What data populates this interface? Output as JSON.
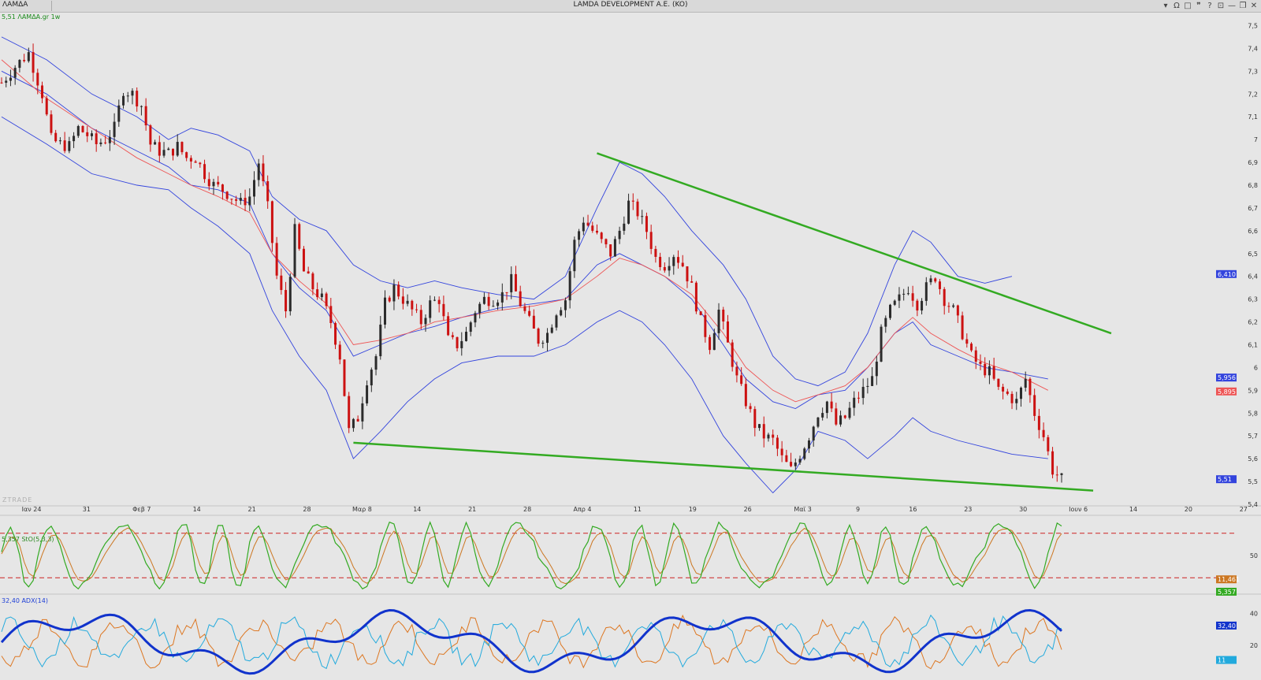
{
  "window": {
    "symbol": "ΛΑΜΔΑ",
    "title": "LAMDA DEVELOPMENT A.E. (KO)",
    "icons": [
      "dropdown-icon",
      "omega-icon",
      "square-icon",
      "quote-icon",
      "help-icon",
      "lock-icon",
      "minimize-icon",
      "restore-icon",
      "close-icon"
    ],
    "icon_glyphs": [
      "▾",
      "Ω",
      "□",
      "❞",
      "?",
      "⊡",
      "—",
      "❐",
      "✕"
    ]
  },
  "main_label": "5,51 ΛΑΜΔΑ.gr 1w",
  "watermark": "ZTRADE",
  "stoch_label": "5,357 StO(5,3,3)",
  "adx_label": "32,40 ADX(14)",
  "colors": {
    "up": "#2b2b2b",
    "down": "#cc1111",
    "bollinger": "#3344dd",
    "ma": "#ee5555",
    "trend": "#33aa22",
    "stoch_k": "#33aa22",
    "stoch_d": "#cc7722",
    "stoch_level": "#cc2222",
    "adx": "#1133cc",
    "di_plus": "#22aadd",
    "di_minus": "#dd7722"
  },
  "chart_data": [
    {
      "type": "line",
      "title": "LAMDA DEVELOPMENT A.E. (KO)",
      "y_ticks": [
        "7,5",
        "7,4",
        "7,3",
        "7,2",
        "7,1",
        "7",
        "6,9",
        "6,8",
        "6,7",
        "6,6",
        "6,5",
        "6,4",
        "6,3",
        "6,2",
        "6,1",
        "6",
        "5,9",
        "5,8",
        "5,7",
        "5,6",
        "5,5",
        "5,4"
      ],
      "x_ticks": [
        "Ιαν 24",
        "31",
        "Φεβ 7",
        "14",
        "21",
        "28",
        "Μαρ 8",
        "14",
        "21",
        "28",
        "Απρ 4",
        "11",
        "19",
        "26",
        "Μαϊ 3",
        "9",
        "16",
        "23",
        "30",
        "Ιουν 6",
        "14",
        "20",
        "27"
      ],
      "ylim": [
        5.4,
        7.55
      ],
      "last_close": 5.51,
      "badges": [
        {
          "label": "6,410",
          "value": 6.41,
          "color": "#3344dd"
        },
        {
          "label": "5,956",
          "value": 5.956,
          "color": "#3344dd"
        },
        {
          "label": "5,895",
          "value": 5.895,
          "color": "#ee5555"
        },
        {
          "label": "5,51",
          "value": 5.51,
          "color": "#3344dd"
        }
      ],
      "price_path": [
        [
          0,
          7.25
        ],
        [
          3,
          7.32
        ],
        [
          6,
          7.38
        ],
        [
          9,
          7.2
        ],
        [
          11,
          7.0
        ],
        [
          13,
          6.98
        ],
        [
          15,
          6.97
        ],
        [
          17,
          7.05
        ],
        [
          19,
          7.02
        ],
        [
          21,
          6.98
        ],
        [
          23,
          7.0
        ],
        [
          25,
          7.05
        ],
        [
          27,
          7.22
        ],
        [
          29,
          7.2
        ],
        [
          31,
          7.15
        ],
        [
          33,
          6.98
        ],
        [
          35,
          6.95
        ],
        [
          37,
          6.94
        ],
        [
          39,
          6.97
        ],
        [
          41,
          6.92
        ],
        [
          43,
          6.92
        ],
        [
          45,
          6.85
        ],
        [
          47,
          6.8
        ],
        [
          49,
          6.78
        ],
        [
          51,
          6.75
        ],
        [
          53,
          6.72
        ],
        [
          55,
          6.75
        ],
        [
          57,
          6.9
        ],
        [
          59,
          6.7
        ],
        [
          61,
          6.4
        ],
        [
          63,
          6.25
        ],
        [
          65,
          6.6
        ],
        [
          67,
          6.42
        ],
        [
          69,
          6.35
        ],
        [
          71,
          6.3
        ],
        [
          73,
          6.2
        ],
        [
          75,
          6.05
        ],
        [
          77,
          5.72
        ],
        [
          79,
          5.78
        ],
        [
          81,
          5.95
        ],
        [
          83,
          6.05
        ],
        [
          85,
          6.28
        ],
        [
          87,
          6.35
        ],
        [
          89,
          6.3
        ],
        [
          91,
          6.25
        ],
        [
          93,
          6.2
        ],
        [
          95,
          6.28
        ],
        [
          97,
          6.3
        ],
        [
          99,
          6.12
        ],
        [
          101,
          6.1
        ],
        [
          103,
          6.15
        ],
        [
          105,
          6.25
        ],
        [
          107,
          6.3
        ],
        [
          109,
          6.3
        ],
        [
          111,
          6.32
        ],
        [
          113,
          6.38
        ],
        [
          115,
          6.28
        ],
        [
          117,
          6.2
        ],
        [
          119,
          6.12
        ],
        [
          121,
          6.15
        ],
        [
          123,
          6.25
        ],
        [
          125,
          6.3
        ],
        [
          127,
          6.55
        ],
        [
          129,
          6.65
        ],
        [
          131,
          6.6
        ],
        [
          133,
          6.55
        ],
        [
          135,
          6.5
        ],
        [
          137,
          6.6
        ],
        [
          139,
          6.72
        ],
        [
          141,
          6.68
        ],
        [
          143,
          6.6
        ],
        [
          145,
          6.48
        ],
        [
          147,
          6.45
        ],
        [
          149,
          6.5
        ],
        [
          151,
          6.45
        ],
        [
          153,
          6.35
        ],
        [
          155,
          6.2
        ],
        [
          157,
          6.1
        ],
        [
          159,
          6.25
        ],
        [
          161,
          6.1
        ],
        [
          163,
          5.95
        ],
        [
          165,
          5.85
        ],
        [
          167,
          5.75
        ],
        [
          169,
          5.7
        ],
        [
          171,
          5.68
        ],
        [
          173,
          5.6
        ],
        [
          175,
          5.55
        ],
        [
          177,
          5.62
        ],
        [
          179,
          5.7
        ],
        [
          181,
          5.8
        ],
        [
          183,
          5.85
        ],
        [
          185,
          5.75
        ],
        [
          187,
          5.78
        ],
        [
          189,
          5.85
        ],
        [
          191,
          5.9
        ],
        [
          193,
          5.95
        ],
        [
          195,
          6.15
        ],
        [
          197,
          6.25
        ],
        [
          199,
          6.3
        ],
        [
          201,
          6.35
        ],
        [
          203,
          6.28
        ],
        [
          205,
          6.35
        ],
        [
          207,
          6.4
        ],
        [
          209,
          6.3
        ],
        [
          211,
          6.25
        ],
        [
          213,
          6.15
        ],
        [
          215,
          6.05
        ],
        [
          217,
          6.0
        ],
        [
          219,
          5.98
        ],
        [
          221,
          5.9
        ],
        [
          223,
          5.88
        ],
        [
          225,
          5.85
        ],
        [
          227,
          5.95
        ],
        [
          229,
          5.8
        ],
        [
          231,
          5.7
        ],
        [
          233,
          5.55
        ],
        [
          235,
          5.51
        ]
      ],
      "bollinger_upper": [
        [
          0,
          7.45
        ],
        [
          10,
          7.35
        ],
        [
          20,
          7.2
        ],
        [
          30,
          7.1
        ],
        [
          37,
          7.0
        ],
        [
          42,
          7.05
        ],
        [
          48,
          7.02
        ],
        [
          55,
          6.95
        ],
        [
          60,
          6.75
        ],
        [
          66,
          6.65
        ],
        [
          72,
          6.6
        ],
        [
          78,
          6.45
        ],
        [
          84,
          6.38
        ],
        [
          90,
          6.35
        ],
        [
          96,
          6.38
        ],
        [
          102,
          6.35
        ],
        [
          110,
          6.32
        ],
        [
          118,
          6.3
        ],
        [
          125,
          6.4
        ],
        [
          132,
          6.7
        ],
        [
          137,
          6.9
        ],
        [
          142,
          6.85
        ],
        [
          147,
          6.75
        ],
        [
          153,
          6.6
        ],
        [
          160,
          6.45
        ],
        [
          165,
          6.3
        ],
        [
          171,
          6.05
        ],
        [
          176,
          5.95
        ],
        [
          181,
          5.92
        ],
        [
          187,
          5.98
        ],
        [
          192,
          6.15
        ],
        [
          198,
          6.45
        ],
        [
          202,
          6.6
        ],
        [
          206,
          6.55
        ],
        [
          212,
          6.4
        ],
        [
          218,
          6.37
        ],
        [
          224,
          6.4
        ]
      ],
      "bollinger_mid": [
        [
          0,
          7.3
        ],
        [
          10,
          7.2
        ],
        [
          20,
          7.05
        ],
        [
          30,
          6.95
        ],
        [
          37,
          6.88
        ],
        [
          42,
          6.8
        ],
        [
          48,
          6.78
        ],
        [
          55,
          6.72
        ],
        [
          60,
          6.5
        ],
        [
          66,
          6.35
        ],
        [
          72,
          6.25
        ],
        [
          78,
          6.05
        ],
        [
          84,
          6.1
        ],
        [
          90,
          6.15
        ],
        [
          96,
          6.18
        ],
        [
          102,
          6.22
        ],
        [
          110,
          6.26
        ],
        [
          118,
          6.28
        ],
        [
          125,
          6.3
        ],
        [
          132,
          6.45
        ],
        [
          137,
          6.5
        ],
        [
          142,
          6.45
        ],
        [
          147,
          6.4
        ],
        [
          153,
          6.3
        ],
        [
          160,
          6.1
        ],
        [
          165,
          5.95
        ],
        [
          171,
          5.85
        ],
        [
          176,
          5.82
        ],
        [
          181,
          5.88
        ],
        [
          187,
          5.9
        ],
        [
          192,
          6.0
        ],
        [
          198,
          6.15
        ],
        [
          202,
          6.2
        ],
        [
          206,
          6.1
        ],
        [
          212,
          6.05
        ],
        [
          218,
          6.0
        ],
        [
          224,
          5.98
        ],
        [
          232,
          5.95
        ]
      ],
      "bollinger_lower": [
        [
          0,
          7.1
        ],
        [
          10,
          6.98
        ],
        [
          20,
          6.85
        ],
        [
          30,
          6.8
        ],
        [
          37,
          6.78
        ],
        [
          42,
          6.7
        ],
        [
          48,
          6.62
        ],
        [
          55,
          6.5
        ],
        [
          60,
          6.25
        ],
        [
          66,
          6.05
        ],
        [
          72,
          5.9
        ],
        [
          78,
          5.6
        ],
        [
          84,
          5.72
        ],
        [
          90,
          5.85
        ],
        [
          96,
          5.95
        ],
        [
          102,
          6.02
        ],
        [
          110,
          6.05
        ],
        [
          118,
          6.05
        ],
        [
          125,
          6.1
        ],
        [
          132,
          6.2
        ],
        [
          137,
          6.25
        ],
        [
          142,
          6.2
        ],
        [
          147,
          6.1
        ],
        [
          153,
          5.95
        ],
        [
          160,
          5.7
        ],
        [
          165,
          5.58
        ],
        [
          171,
          5.45
        ],
        [
          176,
          5.55
        ],
        [
          181,
          5.72
        ],
        [
          187,
          5.68
        ],
        [
          192,
          5.6
        ],
        [
          198,
          5.7
        ],
        [
          202,
          5.78
        ],
        [
          206,
          5.72
        ],
        [
          212,
          5.68
        ],
        [
          218,
          5.65
        ],
        [
          224,
          5.62
        ],
        [
          232,
          5.6
        ]
      ],
      "moving_average": [
        [
          0,
          7.35
        ],
        [
          10,
          7.18
        ],
        [
          20,
          7.05
        ],
        [
          30,
          6.92
        ],
        [
          37,
          6.85
        ],
        [
          42,
          6.8
        ],
        [
          48,
          6.75
        ],
        [
          55,
          6.68
        ],
        [
          60,
          6.5
        ],
        [
          66,
          6.38
        ],
        [
          72,
          6.28
        ],
        [
          78,
          6.1
        ],
        [
          84,
          6.12
        ],
        [
          90,
          6.15
        ],
        [
          96,
          6.2
        ],
        [
          102,
          6.22
        ],
        [
          110,
          6.25
        ],
        [
          118,
          6.27
        ],
        [
          125,
          6.3
        ],
        [
          132,
          6.4
        ],
        [
          137,
          6.48
        ],
        [
          142,
          6.45
        ],
        [
          147,
          6.4
        ],
        [
          153,
          6.32
        ],
        [
          160,
          6.15
        ],
        [
          165,
          6.0
        ],
        [
          171,
          5.9
        ],
        [
          176,
          5.85
        ],
        [
          181,
          5.88
        ],
        [
          187,
          5.92
        ],
        [
          192,
          6.0
        ],
        [
          198,
          6.15
        ],
        [
          202,
          6.22
        ],
        [
          206,
          6.15
        ],
        [
          212,
          6.08
        ],
        [
          218,
          6.02
        ],
        [
          224,
          5.98
        ],
        [
          232,
          5.9
        ]
      ],
      "trendlines": [
        {
          "name": "resistance",
          "from": [
            132,
            6.94
          ],
          "to": [
            246,
            6.15
          ]
        },
        {
          "name": "support",
          "from": [
            78,
            5.67
          ],
          "to": [
            242,
            5.46
          ]
        }
      ]
    },
    {
      "type": "line",
      "title": "5,357 StO(5,3,3)",
      "y_ticks": [
        "50"
      ],
      "levels": [
        80,
        20
      ],
      "badges": [
        {
          "label": "11,461",
          "value": 11.46,
          "color": "#cc7722"
        },
        {
          "label": "5,357",
          "value": 5.357,
          "color": "#33aa22"
        }
      ]
    },
    {
      "type": "line",
      "title": "32,40 ADX(14)",
      "y_ticks": [
        "40",
        "20"
      ],
      "badges": [
        {
          "label": "32,40",
          "value": 32.4,
          "color": "#1133cc"
        },
        {
          "label": "11",
          "value": 11,
          "color": "#22aadd"
        }
      ]
    }
  ]
}
